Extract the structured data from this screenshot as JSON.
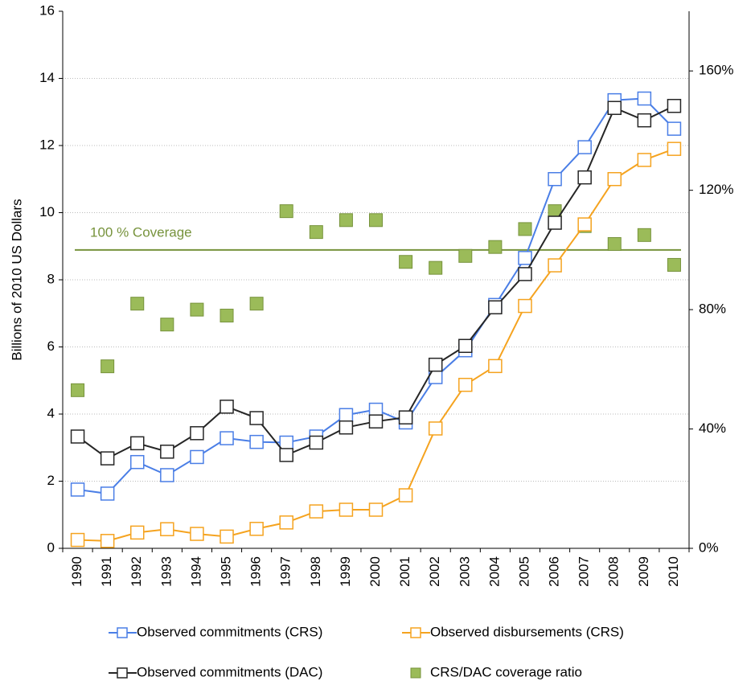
{
  "chart_data": {
    "type": "line",
    "y_label": "Billions of 2010 US Dollars",
    "categories": [
      "1990",
      "1991",
      "1992",
      "1993",
      "1994",
      "1995",
      "1996",
      "1997",
      "1998",
      "1999",
      "2000",
      "2001",
      "2002",
      "2003",
      "2004",
      "2005",
      "2006",
      "2007",
      "2008",
      "2009",
      "2010"
    ],
    "ylim": [
      0,
      16
    ],
    "yticks": [
      0,
      2,
      4,
      6,
      8,
      10,
      12,
      14,
      16
    ],
    "y2lim": [
      0,
      180
    ],
    "y2ticks": [
      {
        "value": 0,
        "label": "0%"
      },
      {
        "value": 40,
        "label": "40%"
      },
      {
        "value": 80,
        "label": "80%"
      },
      {
        "value": 120,
        "label": "120%"
      },
      {
        "value": 160,
        "label": "160%"
      }
    ],
    "grid": true,
    "legend": "bottom",
    "reference_line": {
      "value": 100,
      "axis": "y2",
      "label": "100 % Coverage",
      "color": "#77933c"
    },
    "series": [
      {
        "name": "Observed commitments (CRS)",
        "type": "line",
        "color": "#4a7ee6",
        "values": [
          1.75,
          1.63,
          2.57,
          2.18,
          2.72,
          3.28,
          3.17,
          3.15,
          3.33,
          3.97,
          4.13,
          3.75,
          5.1,
          5.9,
          7.25,
          8.65,
          11.0,
          11.95,
          13.35,
          13.4,
          12.5
        ]
      },
      {
        "name": "Observed disbursements (CRS)",
        "type": "line",
        "color": "#f5a31f",
        "values": [
          0.25,
          0.22,
          0.47,
          0.57,
          0.43,
          0.35,
          0.58,
          0.77,
          1.1,
          1.15,
          1.15,
          1.58,
          3.57,
          4.87,
          5.43,
          7.22,
          8.43,
          9.65,
          11.0,
          11.57,
          11.9
        ]
      },
      {
        "name": "Observed commitments (DAC)",
        "type": "line",
        "color": "#262626",
        "values": [
          3.33,
          2.68,
          3.13,
          2.88,
          3.43,
          4.22,
          3.88,
          2.78,
          3.15,
          3.6,
          3.78,
          3.9,
          5.47,
          6.03,
          7.18,
          8.17,
          9.7,
          11.05,
          13.12,
          12.75,
          13.18
        ]
      },
      {
        "name": "CRS/DAC coverage ratio",
        "type": "scatter",
        "axis": "y2",
        "color": "#9bbb59",
        "values": [
          53,
          61,
          82,
          75,
          80,
          78,
          82,
          113,
          106,
          110,
          110,
          96,
          94,
          98,
          101,
          107,
          113,
          108,
          102,
          105,
          95
        ]
      }
    ]
  }
}
